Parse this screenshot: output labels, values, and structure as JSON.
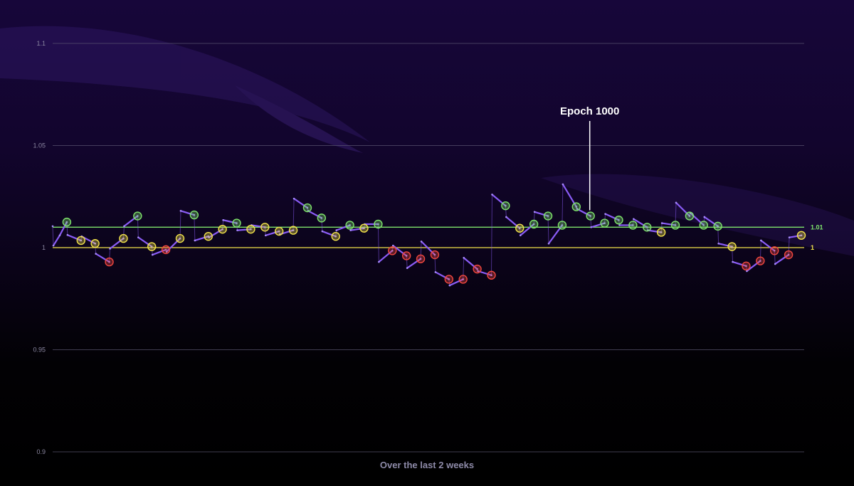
{
  "chart_data": {
    "type": "line",
    "xlabel": "Over the last 2 weeks",
    "ylim": [
      0.9,
      1.1
    ],
    "yticks": [
      "0.9",
      "0.95",
      "1",
      "1.05",
      "1.1"
    ],
    "colors": {
      "line": "#8a5cf6",
      "green": "#7ee36b",
      "yellow": "#f2e34a",
      "red": "#f0473f",
      "grid": "#5a5670"
    },
    "reference_lines": [
      {
        "label": "1.01",
        "value": 1.01,
        "color": "#7ee36b"
      },
      {
        "label": "1",
        "value": 1.0,
        "color": "#f2e34a"
      }
    ],
    "annotation": {
      "text": "Epoch 1000",
      "x": 38
    },
    "x_range": [
      0,
      52
    ],
    "series": [
      {
        "points": [
          {
            "x": 0.0,
            "y": 1.0105
          },
          {
            "x": 0.05,
            "y": 1.001
          },
          {
            "x": 0.5,
            "y": 1.006
          },
          {
            "x": 1,
            "y": 1.0125
          },
          {
            "x": 1.05,
            "y": 1.0062
          },
          {
            "x": 2,
            "y": 1.0035
          },
          {
            "x": 2.05,
            "y": 1.0055
          },
          {
            "x": 3,
            "y": 1.002
          },
          {
            "x": 3.05,
            "y": 0.997
          },
          {
            "x": 4,
            "y": 0.993
          },
          {
            "x": 4.05,
            "y": 0.9995
          },
          {
            "x": 5,
            "y": 1.0045
          },
          {
            "x": 5.05,
            "y": 1.0105
          },
          {
            "x": 6,
            "y": 1.0155
          },
          {
            "x": 6.05,
            "y": 1.005
          },
          {
            "x": 7,
            "y": 1.0005
          },
          {
            "x": 7.05,
            "y": 0.9965
          },
          {
            "x": 8,
            "y": 0.999
          },
          {
            "x": 8.05,
            "y": 0.998
          },
          {
            "x": 9,
            "y": 1.0045
          },
          {
            "x": 9.05,
            "y": 1.018
          },
          {
            "x": 10,
            "y": 1.016
          },
          {
            "x": 10.05,
            "y": 1.0035
          },
          {
            "x": 11,
            "y": 1.0055
          },
          {
            "x": 11.05,
            "y": 1.005
          },
          {
            "x": 12,
            "y": 1.009
          },
          {
            "x": 12.05,
            "y": 1.0135
          },
          {
            "x": 13,
            "y": 1.012
          },
          {
            "x": 13.05,
            "y": 1.0085
          },
          {
            "x": 14,
            "y": 1.009
          },
          {
            "x": 14.05,
            "y": 1.011
          },
          {
            "x": 15,
            "y": 1.01
          },
          {
            "x": 15.05,
            "y": 1.006
          },
          {
            "x": 16,
            "y": 1.008
          },
          {
            "x": 16.05,
            "y": 1.0065
          },
          {
            "x": 17,
            "y": 1.0085
          },
          {
            "x": 17.05,
            "y": 1.024
          },
          {
            "x": 18,
            "y": 1.0195
          },
          {
            "x": 18.05,
            "y": 1.018
          },
          {
            "x": 19,
            "y": 1.0145
          },
          {
            "x": 19.05,
            "y": 1.008
          },
          {
            "x": 20,
            "y": 1.0055
          },
          {
            "x": 20.05,
            "y": 1.0085
          },
          {
            "x": 21,
            "y": 1.011
          },
          {
            "x": 21.05,
            "y": 1.0085
          },
          {
            "x": 22,
            "y": 1.0095
          },
          {
            "x": 22.05,
            "y": 1.0115
          },
          {
            "x": 23,
            "y": 1.0115
          },
          {
            "x": 23.05,
            "y": 0.993
          },
          {
            "x": 24,
            "y": 0.9985
          },
          {
            "x": 24.05,
            "y": 1.001
          },
          {
            "x": 25,
            "y": 0.996
          },
          {
            "x": 25.05,
            "y": 0.99
          },
          {
            "x": 26,
            "y": 0.9945
          },
          {
            "x": 26.05,
            "y": 1.003
          },
          {
            "x": 27,
            "y": 0.9965
          },
          {
            "x": 27.05,
            "y": 0.988
          },
          {
            "x": 28,
            "y": 0.9845
          },
          {
            "x": 28.05,
            "y": 0.9815
          },
          {
            "x": 29,
            "y": 0.9845
          },
          {
            "x": 29.05,
            "y": 0.995
          },
          {
            "x": 30,
            "y": 0.9895
          },
          {
            "x": 30.05,
            "y": 0.9885
          },
          {
            "x": 31,
            "y": 0.9865
          },
          {
            "x": 31.05,
            "y": 1.026
          },
          {
            "x": 32,
            "y": 1.0205
          },
          {
            "x": 32.05,
            "y": 1.015
          },
          {
            "x": 33,
            "y": 1.0095
          },
          {
            "x": 33.05,
            "y": 1.006
          },
          {
            "x": 34,
            "y": 1.0115
          },
          {
            "x": 34.05,
            "y": 1.0175
          },
          {
            "x": 35,
            "y": 1.0155
          },
          {
            "x": 35.05,
            "y": 1.002
          },
          {
            "x": 36,
            "y": 1.011
          },
          {
            "x": 36.05,
            "y": 1.031
          },
          {
            "x": 37,
            "y": 1.02
          },
          {
            "x": 37.05,
            "y": 1.019
          },
          {
            "x": 38,
            "y": 1.0155
          },
          {
            "x": 38.05,
            "y": 1.01
          },
          {
            "x": 39,
            "y": 1.012
          },
          {
            "x": 39.05,
            "y": 1.0165
          },
          {
            "x": 40,
            "y": 1.0135
          },
          {
            "x": 40.05,
            "y": 1.011
          },
          {
            "x": 41,
            "y": 1.011
          },
          {
            "x": 41.05,
            "y": 1.014
          },
          {
            "x": 42,
            "y": 1.01
          },
          {
            "x": 42.05,
            "y": 1.0085
          },
          {
            "x": 43,
            "y": 1.0075
          },
          {
            "x": 43.05,
            "y": 1.012
          },
          {
            "x": 44,
            "y": 1.011
          },
          {
            "x": 44.05,
            "y": 1.022
          },
          {
            "x": 45,
            "y": 1.0155
          },
          {
            "x": 45.05,
            "y": 1.017
          },
          {
            "x": 46,
            "y": 1.011
          },
          {
            "x": 46.05,
            "y": 1.015
          },
          {
            "x": 47,
            "y": 1.0105
          },
          {
            "x": 47.05,
            "y": 1.002
          },
          {
            "x": 48,
            "y": 1.0005
          },
          {
            "x": 48.05,
            "y": 0.993
          },
          {
            "x": 49,
            "y": 0.991
          },
          {
            "x": 49.05,
            "y": 0.9885
          },
          {
            "x": 50,
            "y": 0.9935
          },
          {
            "x": 50.05,
            "y": 1.0035
          },
          {
            "x": 51,
            "y": 0.9985
          },
          {
            "x": 51.05,
            "y": 0.992
          },
          {
            "x": 52,
            "y": 0.9965
          },
          {
            "x": 52.05,
            "y": 1.005
          },
          {
            "x": 52.9,
            "y": 1.006
          }
        ]
      }
    ],
    "markers": [
      {
        "x": 1,
        "y": 1.0125,
        "c": "green"
      },
      {
        "x": 2,
        "y": 1.0035,
        "c": "yellow"
      },
      {
        "x": 3,
        "y": 1.002,
        "c": "yellow"
      },
      {
        "x": 4,
        "y": 0.993,
        "c": "red"
      },
      {
        "x": 5,
        "y": 1.0045,
        "c": "yellow"
      },
      {
        "x": 6,
        "y": 1.0155,
        "c": "green"
      },
      {
        "x": 7,
        "y": 1.0005,
        "c": "yellow"
      },
      {
        "x": 8,
        "y": 0.999,
        "c": "red"
      },
      {
        "x": 9,
        "y": 1.0045,
        "c": "yellow"
      },
      {
        "x": 10,
        "y": 1.016,
        "c": "green"
      },
      {
        "x": 11,
        "y": 1.0055,
        "c": "yellow"
      },
      {
        "x": 12,
        "y": 1.009,
        "c": "yellow"
      },
      {
        "x": 13,
        "y": 1.012,
        "c": "green"
      },
      {
        "x": 14,
        "y": 1.009,
        "c": "yellow"
      },
      {
        "x": 15,
        "y": 1.01,
        "c": "yellow"
      },
      {
        "x": 16,
        "y": 1.008,
        "c": "yellow"
      },
      {
        "x": 17,
        "y": 1.0085,
        "c": "yellow"
      },
      {
        "x": 18,
        "y": 1.0195,
        "c": "green"
      },
      {
        "x": 19,
        "y": 1.0145,
        "c": "green"
      },
      {
        "x": 20,
        "y": 1.0055,
        "c": "yellow"
      },
      {
        "x": 21,
        "y": 1.011,
        "c": "green"
      },
      {
        "x": 22,
        "y": 1.0095,
        "c": "yellow"
      },
      {
        "x": 23,
        "y": 1.0115,
        "c": "green"
      },
      {
        "x": 24,
        "y": 0.9985,
        "c": "red"
      },
      {
        "x": 25,
        "y": 0.996,
        "c": "red"
      },
      {
        "x": 26,
        "y": 0.9945,
        "c": "red"
      },
      {
        "x": 27,
        "y": 0.9965,
        "c": "red"
      },
      {
        "x": 28,
        "y": 0.9845,
        "c": "red"
      },
      {
        "x": 29,
        "y": 0.9845,
        "c": "red"
      },
      {
        "x": 30,
        "y": 0.9895,
        "c": "red"
      },
      {
        "x": 31,
        "y": 0.9865,
        "c": "red"
      },
      {
        "x": 32,
        "y": 1.0205,
        "c": "green"
      },
      {
        "x": 33,
        "y": 1.0095,
        "c": "yellow"
      },
      {
        "x": 34,
        "y": 1.0115,
        "c": "green"
      },
      {
        "x": 35,
        "y": 1.0155,
        "c": "green"
      },
      {
        "x": 36,
        "y": 1.011,
        "c": "green"
      },
      {
        "x": 37,
        "y": 1.02,
        "c": "green"
      },
      {
        "x": 38,
        "y": 1.0155,
        "c": "green"
      },
      {
        "x": 39,
        "y": 1.012,
        "c": "green"
      },
      {
        "x": 40,
        "y": 1.0135,
        "c": "green"
      },
      {
        "x": 41,
        "y": 1.011,
        "c": "green"
      },
      {
        "x": 42,
        "y": 1.01,
        "c": "green"
      },
      {
        "x": 43,
        "y": 1.0075,
        "c": "yellow"
      },
      {
        "x": 44,
        "y": 1.011,
        "c": "green"
      },
      {
        "x": 45,
        "y": 1.0155,
        "c": "green"
      },
      {
        "x": 46,
        "y": 1.011,
        "c": "green"
      },
      {
        "x": 47,
        "y": 1.0105,
        "c": "green"
      },
      {
        "x": 48,
        "y": 1.0005,
        "c": "yellow"
      },
      {
        "x": 49,
        "y": 0.991,
        "c": "red"
      },
      {
        "x": 50,
        "y": 0.9935,
        "c": "red"
      },
      {
        "x": 51,
        "y": 0.9985,
        "c": "red"
      },
      {
        "x": 52,
        "y": 0.9965,
        "c": "red"
      },
      {
        "x": 52.9,
        "y": 1.006,
        "c": "yellow"
      }
    ]
  }
}
